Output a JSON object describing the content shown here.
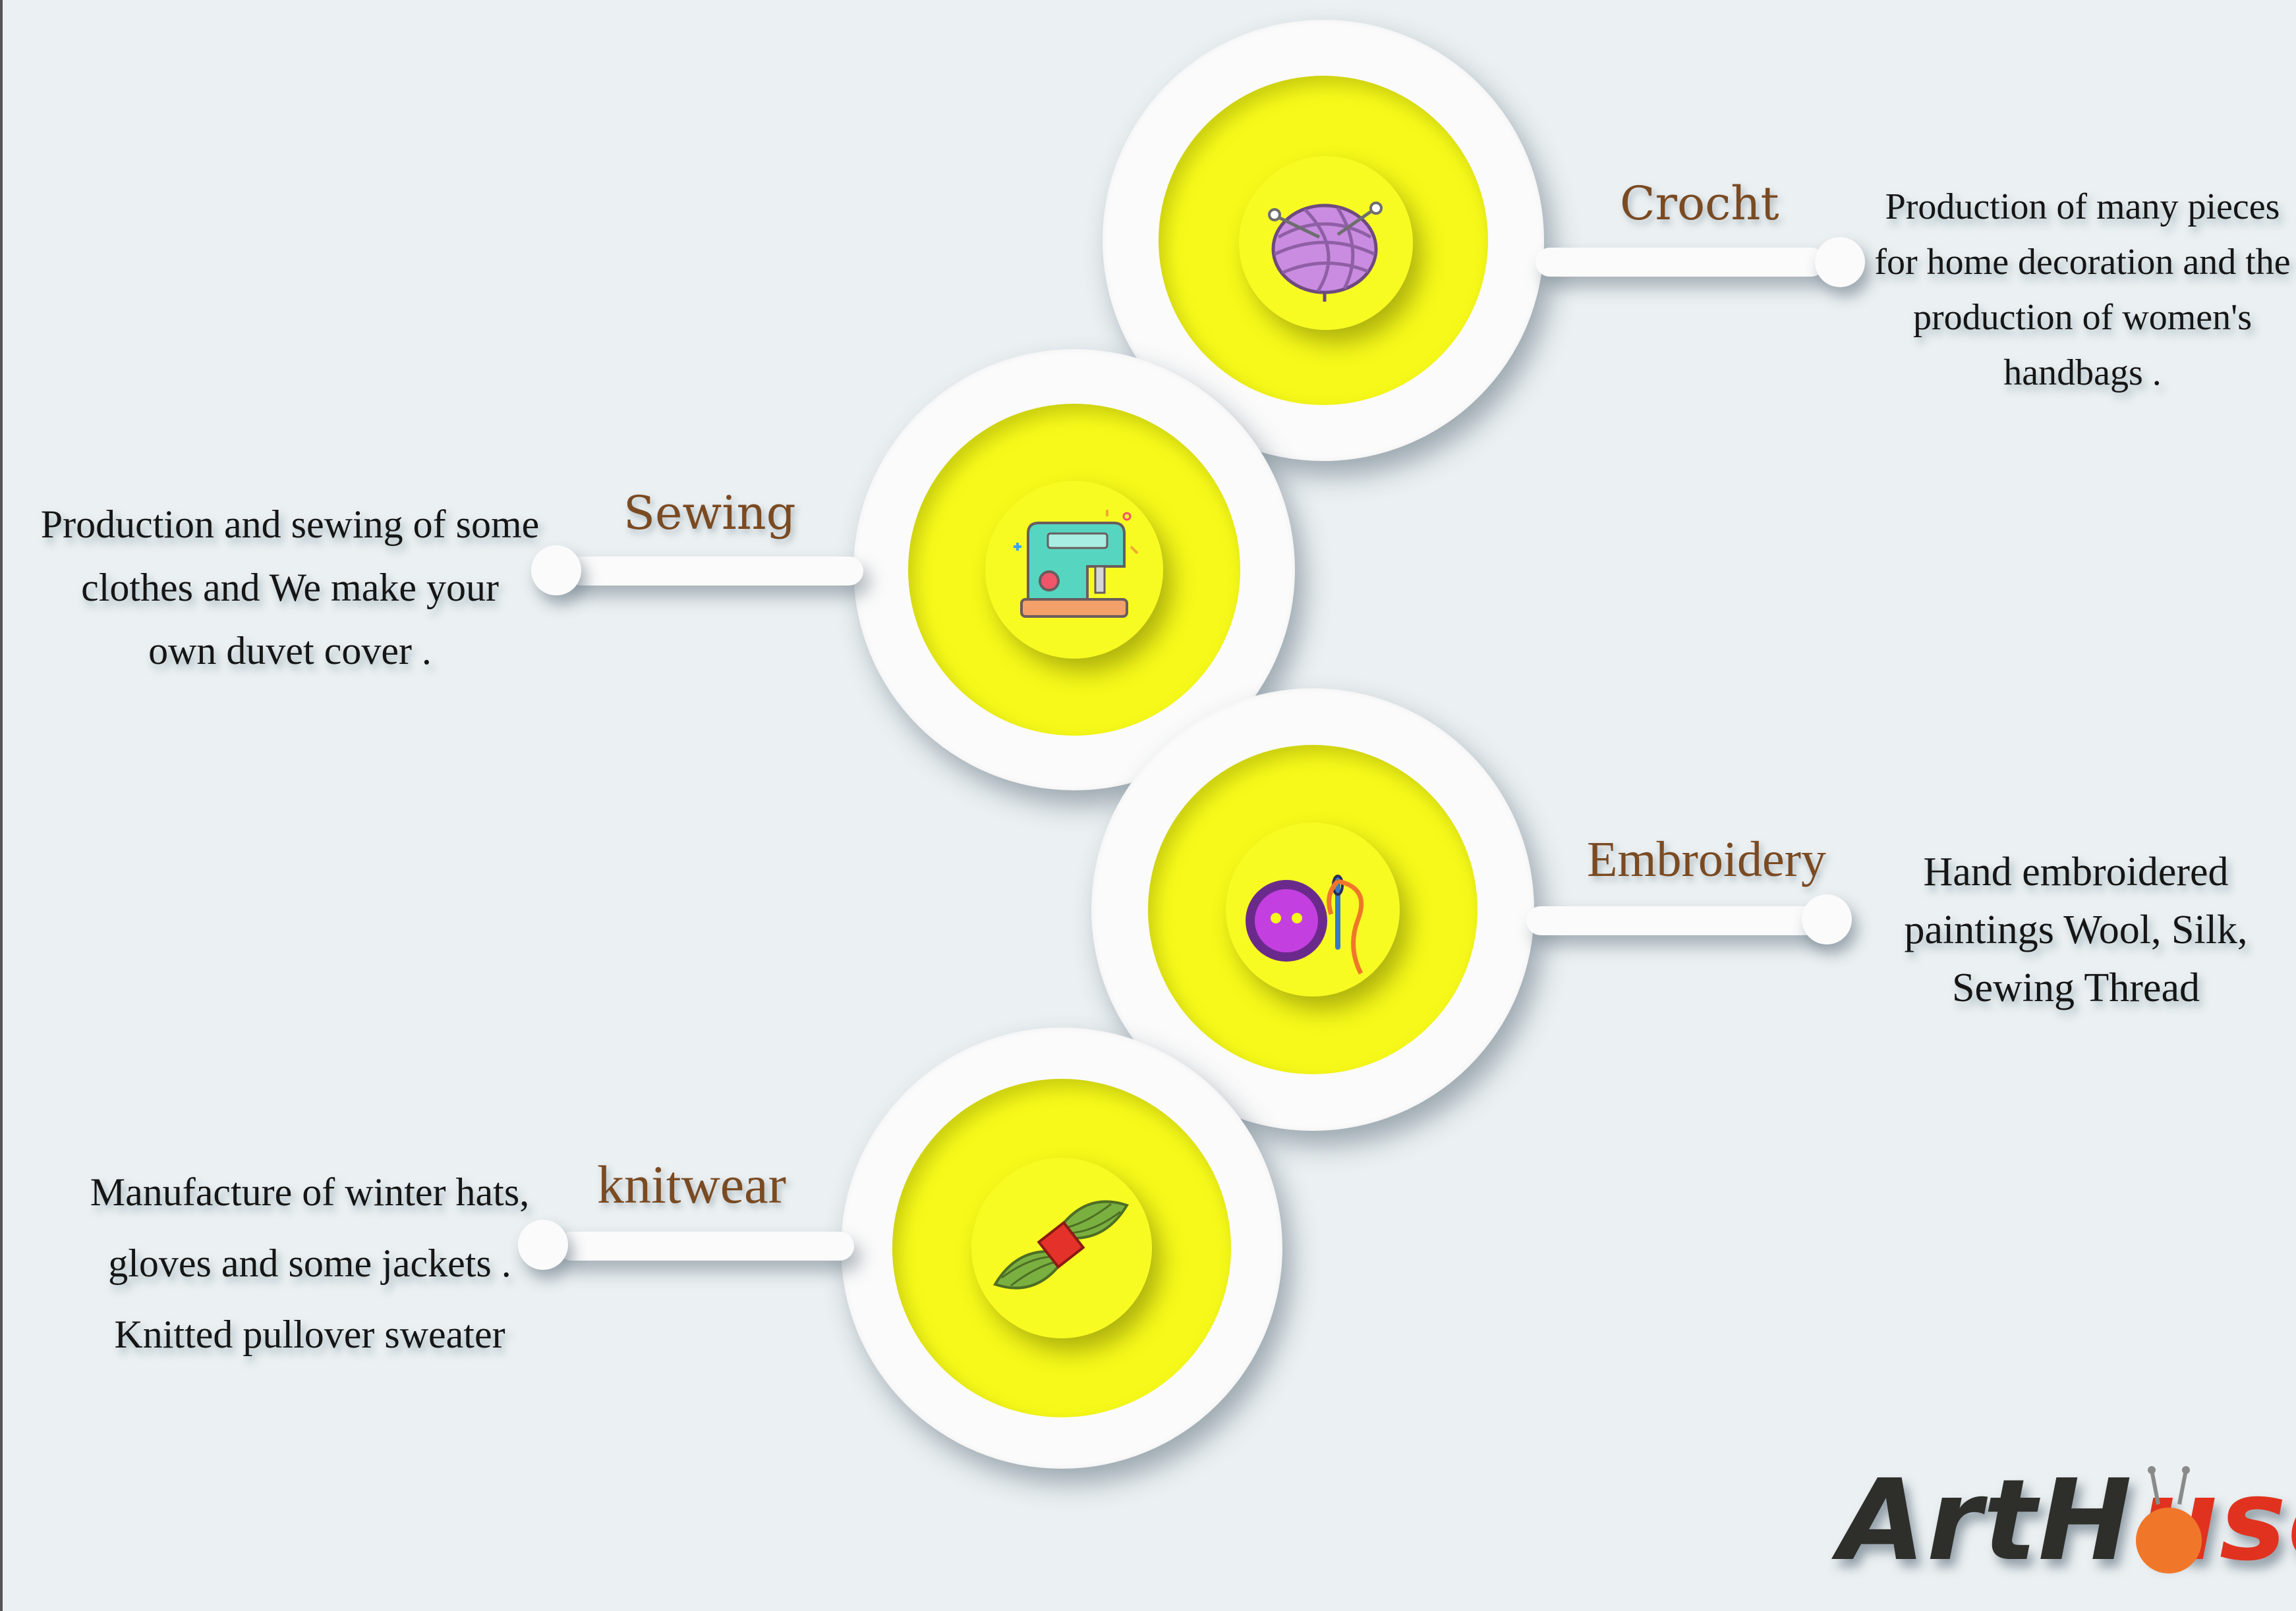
{
  "nodes": [
    {
      "id": "crocht",
      "title": "Crocht",
      "description": [
        "Production of many pieces",
        "for home decoration and the",
        "production of women's",
        "handbags ."
      ],
      "icon": "yarn-ball-icon"
    },
    {
      "id": "sewing",
      "title": "Sewing",
      "description": [
        "Production and sewing of some",
        "clothes and We make your",
        "own duvet cover ."
      ],
      "icon": "sewing-machine-icon"
    },
    {
      "id": "embroidery",
      "title": "Embroidery",
      "description": [
        "Hand embroidered",
        "paintings Wool, Silk,",
        "Sewing Thread"
      ],
      "icon": "button-needle-icon"
    },
    {
      "id": "knitwear",
      "title": "knitwear",
      "description": [
        "Manufacture of winter hats,",
        "gloves and some jackets .",
        "Knitted pullover sweater"
      ],
      "icon": "yarn-skein-icon"
    }
  ],
  "logo": {
    "text": "Art House",
    "part1": "Art",
    "part2": "H",
    "part3": "use"
  },
  "colors": {
    "background": "#ebf0f2",
    "ring": "#fbfbfb",
    "disc_yellow": "#f6f919",
    "title_brown": "#7a4a22",
    "logo_dark": "#2e2e2a",
    "logo_orange": "#f0772a",
    "logo_red": "#e0321e"
  }
}
